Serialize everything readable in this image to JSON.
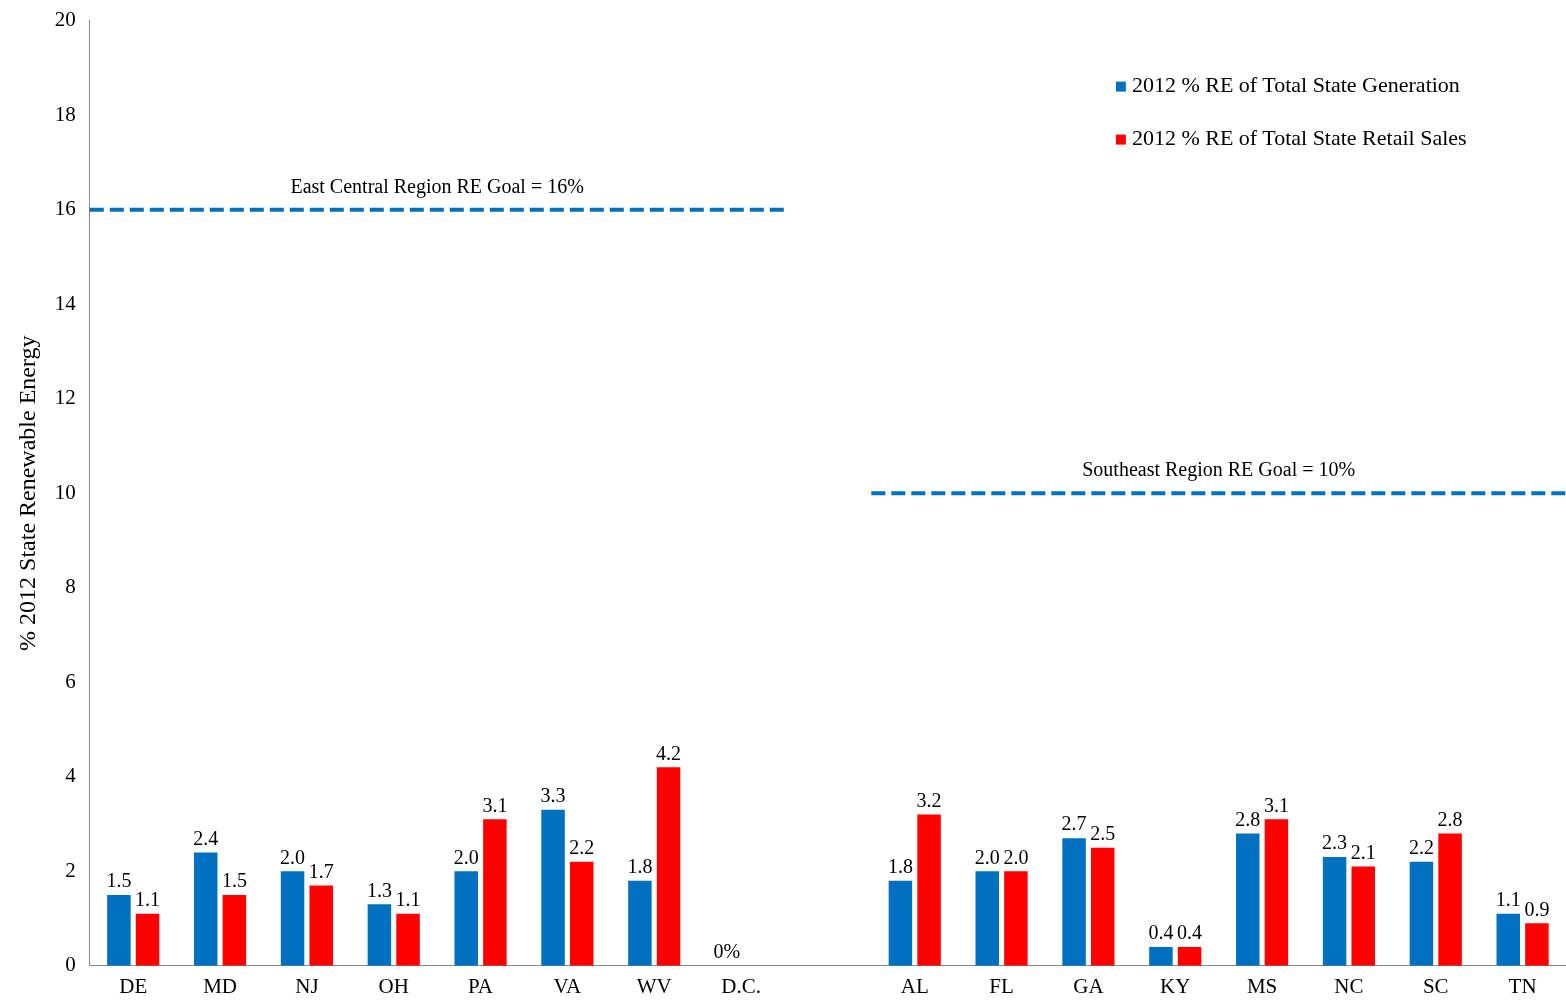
{
  "chart_data": {
    "type": "bar",
    "ylabel": "% 2012 State Renewable Energy",
    "categories": [
      "DE",
      "MD",
      "NJ",
      "OH",
      "PA",
      "VA",
      "WV",
      "D.C.",
      null,
      "AL",
      "FL",
      "GA",
      "KY",
      "MS",
      "NC",
      "SC",
      "TN"
    ],
    "series": [
      {
        "name": "2012 % RE of Total State Generation",
        "color": "#0070c0",
        "values": [
          1.5,
          2.4,
          2.0,
          1.3,
          2.0,
          3.3,
          1.8,
          0,
          null,
          1.8,
          2.0,
          2.7,
          0.4,
          2.8,
          2.3,
          2.2,
          1.1
        ],
        "value_labels": [
          "1.5",
          "2.4",
          "2.0",
          "1.3",
          "2.0",
          "3.3",
          "1.8",
          "0%",
          null,
          "1.8",
          "2.0",
          "2.7",
          "0.4",
          "2.8",
          "2.3",
          "2.2",
          "1.1"
        ]
      },
      {
        "name": "2012 % RE of Total State Retail Sales",
        "color": "#ff0000",
        "values": [
          1.1,
          1.5,
          1.7,
          1.1,
          3.1,
          2.2,
          4.2,
          null,
          null,
          3.2,
          2.0,
          2.5,
          0.4,
          3.1,
          2.1,
          2.8,
          0.9
        ],
        "value_labels": [
          "1.1",
          "1.5",
          "1.7",
          "1.1",
          "3.1",
          "2.2",
          "4.2",
          null,
          null,
          "3.2",
          "2.0",
          "2.5",
          "0.4",
          "3.1",
          "2.1",
          "2.8",
          "0.9"
        ]
      }
    ],
    "ylim": [
      0,
      20
    ],
    "yticks": [
      0,
      2,
      4,
      6,
      8,
      10,
      12,
      14,
      16,
      18,
      20
    ],
    "grid": false,
    "legend": "top right",
    "ref_lines": [
      {
        "axis": "y",
        "value": 16,
        "label": "East Central Region RE Goal = 16%",
        "color": "#0070c0",
        "line_style": "dashed"
      },
      {
        "axis": "y",
        "value": 10,
        "label": "Southeast Region RE Goal = 10%",
        "color": "#0070c0",
        "line_style": "dashed"
      }
    ]
  }
}
